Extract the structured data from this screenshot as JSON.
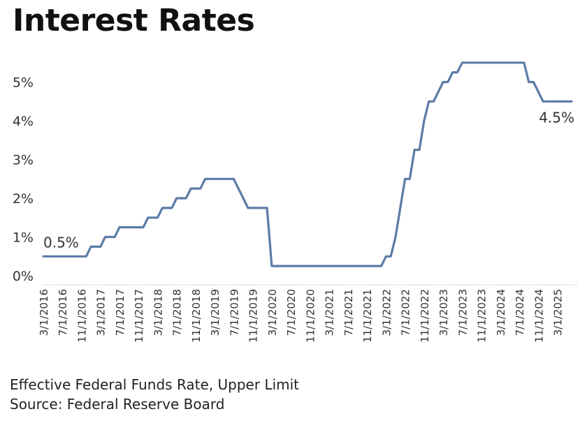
{
  "title": "Interest Rates",
  "footer": {
    "line1": "Effective Federal Funds Rate, Upper Limit",
    "line2": "Source: Federal Reserve Board"
  },
  "chart_data": {
    "type": "line",
    "title": "Interest Rates",
    "xlabel": "",
    "ylabel": "",
    "ylim": [
      0,
      5.5
    ],
    "y_ticks": [
      "0%",
      "1%",
      "2%",
      "3%",
      "4%",
      "5%"
    ],
    "y_tick_values": [
      0,
      1,
      2,
      3,
      4,
      5
    ],
    "x_tick_labels": [
      "3/1/2016",
      "7/1/2016",
      "11/1/2016",
      "3/1/2017",
      "7/1/2017",
      "11/1/2017",
      "3/1/2018",
      "7/1/2018",
      "11/1/2018",
      "3/1/2019",
      "7/1/2019",
      "11/1/2019",
      "3/1/2020",
      "7/1/2020",
      "11/1/2020",
      "3/1/2021",
      "7/1/2021",
      "11/1/2021",
      "3/1/2022",
      "7/1/2022",
      "11/1/2022",
      "3/1/2023",
      "7/1/2023",
      "11/1/2023",
      "3/1/2024",
      "7/1/2024",
      "11/1/2024",
      "3/1/2025"
    ],
    "grid": false,
    "line_color": "#5B7BA7",
    "series": [
      {
        "x": [
          "2016-03",
          "2016-04",
          "2016-05",
          "2016-06",
          "2016-07",
          "2016-08",
          "2016-09",
          "2016-10",
          "2016-11",
          "2016-12",
          "2017-01",
          "2017-02",
          "2017-03",
          "2017-04",
          "2017-05",
          "2017-06",
          "2017-07",
          "2017-08",
          "2017-09",
          "2017-10",
          "2017-11",
          "2017-12",
          "2018-01",
          "2018-02",
          "2018-03",
          "2018-04",
          "2018-05",
          "2018-06",
          "2018-07",
          "2018-08",
          "2018-09",
          "2018-10",
          "2018-11",
          "2018-12",
          "2019-01",
          "2019-02",
          "2019-03",
          "2019-04",
          "2019-05",
          "2019-06",
          "2019-07",
          "2019-08",
          "2019-09",
          "2019-10",
          "2019-11",
          "2019-12",
          "2020-01",
          "2020-02",
          "2020-03",
          "2020-04",
          "2020-05",
          "2020-06",
          "2020-07",
          "2020-08",
          "2020-09",
          "2020-10",
          "2020-11",
          "2020-12",
          "2021-01",
          "2021-02",
          "2021-03",
          "2021-04",
          "2021-05",
          "2021-06",
          "2021-07",
          "2021-08",
          "2021-09",
          "2021-10",
          "2021-11",
          "2021-12",
          "2022-01",
          "2022-02",
          "2022-03",
          "2022-04",
          "2022-05",
          "2022-06",
          "2022-07",
          "2022-08",
          "2022-09",
          "2022-10",
          "2022-11",
          "2022-12",
          "2023-01",
          "2023-02",
          "2023-03",
          "2023-04",
          "2023-05",
          "2023-06",
          "2023-07",
          "2023-08",
          "2023-09",
          "2023-10",
          "2023-11",
          "2023-12",
          "2024-01",
          "2024-02",
          "2024-03",
          "2024-04",
          "2024-05",
          "2024-06",
          "2024-07",
          "2024-08",
          "2024-09",
          "2024-10",
          "2024-11",
          "2024-12",
          "2025-01",
          "2025-02",
          "2025-03",
          "2025-04",
          "2025-05",
          "2025-06"
        ],
        "values": [
          0.5,
          0.5,
          0.5,
          0.5,
          0.5,
          0.5,
          0.5,
          0.5,
          0.5,
          0.5,
          0.75,
          0.75,
          0.75,
          1.0,
          1.0,
          1.0,
          1.25,
          1.25,
          1.25,
          1.25,
          1.25,
          1.25,
          1.5,
          1.5,
          1.5,
          1.75,
          1.75,
          1.75,
          2.0,
          2.0,
          2.0,
          2.25,
          2.25,
          2.25,
          2.5,
          2.5,
          2.5,
          2.5,
          2.5,
          2.5,
          2.5,
          2.25,
          2.0,
          1.75,
          1.75,
          1.75,
          1.75,
          1.75,
          0.25,
          0.25,
          0.25,
          0.25,
          0.25,
          0.25,
          0.25,
          0.25,
          0.25,
          0.25,
          0.25,
          0.25,
          0.25,
          0.25,
          0.25,
          0.25,
          0.25,
          0.25,
          0.25,
          0.25,
          0.25,
          0.25,
          0.25,
          0.25,
          0.5,
          0.5,
          1.0,
          1.75,
          2.5,
          2.5,
          3.25,
          3.25,
          4.0,
          4.5,
          4.5,
          4.75,
          5.0,
          5.0,
          5.25,
          5.25,
          5.5,
          5.5,
          5.5,
          5.5,
          5.5,
          5.5,
          5.5,
          5.5,
          5.5,
          5.5,
          5.5,
          5.5,
          5.5,
          5.5,
          5.0,
          5.0,
          4.75,
          4.5,
          4.5,
          4.5,
          4.5,
          4.5,
          4.5,
          4.5
        ]
      }
    ],
    "annotations": [
      {
        "text": "0.5%",
        "x": "2016-03",
        "y": 0.5
      },
      {
        "text": "4.5%",
        "x": "2025-06",
        "y": 4.5
      }
    ]
  }
}
